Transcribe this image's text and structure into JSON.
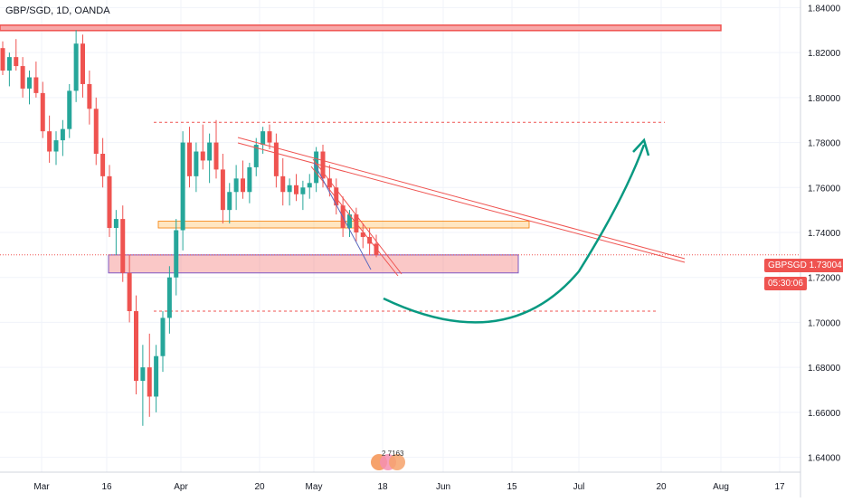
{
  "header": {
    "title": "GBP/SGD, 1D, OANDA"
  },
  "price_badge": {
    "symbol": "GBPSGD",
    "price": "1.73004",
    "countdown": "05:30:06"
  },
  "logo_text": "2 7163",
  "chart_data": {
    "type": "candlestick",
    "symbol": "GBPSGD",
    "interval": "1D",
    "ylim": [
      1.635,
      1.845
    ],
    "y_ticks": [
      "1.84000",
      "1.82000",
      "1.80000",
      "1.78000",
      "1.76000",
      "1.74000",
      "1.72000",
      "1.70000",
      "1.68000",
      "1.66000",
      "1.64000"
    ],
    "x_ticks": [
      "Mar",
      "16",
      "Apr",
      "20",
      "May",
      "18",
      "Jun",
      "15",
      "Jul",
      "20",
      "Aug",
      "17"
    ],
    "candles_ohlc": [
      [
        1.822,
        1.825,
        1.81,
        1.812
      ],
      [
        1.812,
        1.82,
        1.805,
        1.818
      ],
      [
        1.818,
        1.826,
        1.812,
        1.814
      ],
      [
        1.814,
        1.818,
        1.8,
        1.804
      ],
      [
        1.804,
        1.812,
        1.797,
        1.809
      ],
      [
        1.809,
        1.816,
        1.8,
        1.802
      ],
      [
        1.802,
        1.807,
        1.782,
        1.785
      ],
      [
        1.785,
        1.792,
        1.771,
        1.776
      ],
      [
        1.776,
        1.785,
        1.77,
        1.781
      ],
      [
        1.781,
        1.79,
        1.774,
        1.786
      ],
      [
        1.786,
        1.806,
        1.782,
        1.803
      ],
      [
        1.803,
        1.83,
        1.798,
        1.824
      ],
      [
        1.824,
        1.828,
        1.8,
        1.806
      ],
      [
        1.806,
        1.812,
        1.788,
        1.795
      ],
      [
        1.795,
        1.8,
        1.77,
        1.775
      ],
      [
        1.775,
        1.782,
        1.76,
        1.765
      ],
      [
        1.765,
        1.77,
        1.738,
        1.742
      ],
      [
        1.742,
        1.75,
        1.73,
        1.746
      ],
      [
        1.746,
        1.752,
        1.718,
        1.722
      ],
      [
        1.722,
        1.73,
        1.7,
        1.705
      ],
      [
        1.705,
        1.712,
        1.668,
        1.674
      ],
      [
        1.674,
        1.69,
        1.654,
        1.68
      ],
      [
        1.68,
        1.695,
        1.658,
        1.667
      ],
      [
        1.667,
        1.69,
        1.66,
        1.685
      ],
      [
        1.685,
        1.705,
        1.678,
        1.702
      ],
      [
        1.702,
        1.725,
        1.695,
        1.72
      ],
      [
        1.72,
        1.746,
        1.712,
        1.741
      ],
      [
        1.741,
        1.785,
        1.732,
        1.78
      ],
      [
        1.78,
        1.787,
        1.76,
        1.765
      ],
      [
        1.765,
        1.78,
        1.758,
        1.776
      ],
      [
        1.776,
        1.788,
        1.768,
        1.772
      ],
      [
        1.772,
        1.784,
        1.762,
        1.78
      ],
      [
        1.78,
        1.79,
        1.764,
        1.768
      ],
      [
        1.768,
        1.775,
        1.744,
        1.75
      ],
      [
        1.75,
        1.762,
        1.744,
        1.758
      ],
      [
        1.758,
        1.77,
        1.75,
        1.764
      ],
      [
        1.764,
        1.772,
        1.755,
        1.758
      ],
      [
        1.758,
        1.771,
        1.753,
        1.769
      ],
      [
        1.769,
        1.782,
        1.765,
        1.779
      ],
      [
        1.779,
        1.787,
        1.775,
        1.785
      ],
      [
        1.785,
        1.788,
        1.777,
        1.78
      ],
      [
        1.78,
        1.784,
        1.76,
        1.765
      ],
      [
        1.765,
        1.773,
        1.752,
        1.758
      ],
      [
        1.758,
        1.764,
        1.752,
        1.761
      ],
      [
        1.761,
        1.766,
        1.754,
        1.757
      ],
      [
        1.757,
        1.763,
        1.75,
        1.76
      ],
      [
        1.76,
        1.766,
        1.755,
        1.762
      ],
      [
        1.762,
        1.778,
        1.758,
        1.776
      ],
      [
        1.776,
        1.779,
        1.76,
        1.764
      ],
      [
        1.764,
        1.77,
        1.756,
        1.76
      ],
      [
        1.76,
        1.764,
        1.748,
        1.752
      ],
      [
        1.752,
        1.756,
        1.738,
        1.742
      ],
      [
        1.742,
        1.75,
        1.738,
        1.748
      ],
      [
        1.748,
        1.751,
        1.736,
        1.74
      ],
      [
        1.74,
        1.744,
        1.733,
        1.738
      ],
      [
        1.738,
        1.742,
        1.73,
        1.735
      ],
      [
        1.735,
        1.739,
        1.729,
        1.73
      ]
    ],
    "annotations": {
      "resistance_zone": 1.831,
      "upper_dashed_target": 1.789,
      "lower_dashed_level": 1.705,
      "support_zone": [
        1.722,
        1.73
      ],
      "orange_zone": [
        1.742,
        1.745
      ],
      "current_price_line": 1.73004,
      "forecast_curve": "down then up toward 1.785"
    }
  }
}
